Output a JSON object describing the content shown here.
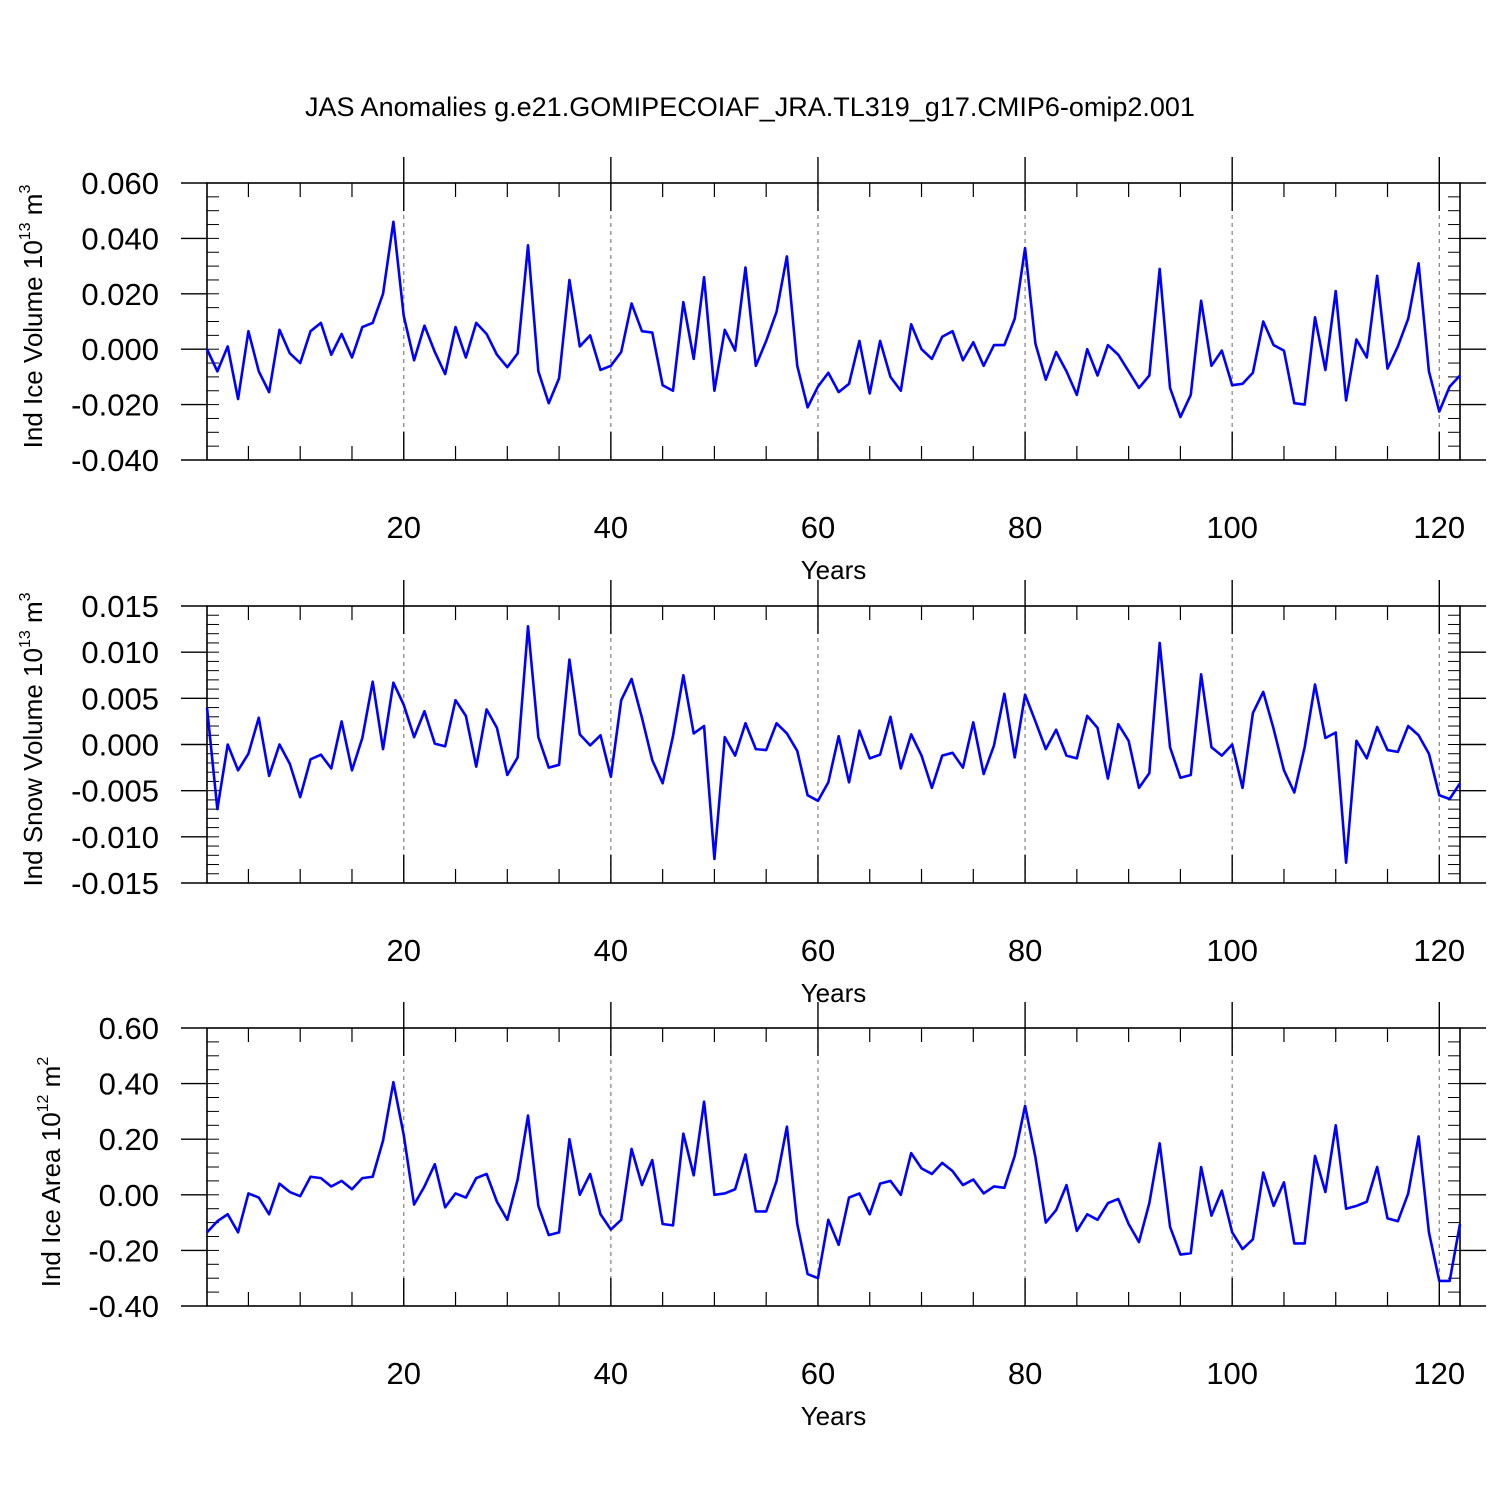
{
  "title": "JAS Anomalies g.e21.GOMIPECOIAF_JRA.TL319_g17.CMIP6-omip2.001",
  "colors": {
    "line": "#0000ff",
    "axis": "#000000",
    "grid": "#808080"
  },
  "chart_data": [
    {
      "type": "line",
      "xlabel": "Years",
      "ylabel": {
        "base": "Ind Ice Volume 10",
        "exp": "13",
        "unit": " m",
        "unit_exp": "3"
      },
      "xlim": [
        1,
        122
      ],
      "ylim": [
        -0.04,
        0.06
      ],
      "xticks": [
        20,
        40,
        60,
        80,
        100,
        120
      ],
      "xtick_labels": [
        "20",
        "40",
        "60",
        "80",
        "100",
        "120"
      ],
      "yticks": [
        -0.04,
        -0.02,
        0.0,
        0.02,
        0.04,
        0.06
      ],
      "ytick_labels": [
        "-0.040",
        "-0.020",
        "0.000",
        "0.020",
        "0.040",
        "0.060"
      ],
      "yminor_step": 0.005,
      "values": [
        0.0,
        -0.008,
        0.001,
        -0.018,
        0.0065,
        -0.008,
        -0.0155,
        0.007,
        -0.0015,
        -0.005,
        0.0065,
        0.0095,
        -0.002,
        0.0055,
        -0.003,
        0.008,
        0.0095,
        0.02,
        0.046,
        0.012,
        -0.004,
        0.0085,
        -0.001,
        -0.009,
        0.008,
        -0.003,
        0.0095,
        0.0055,
        -0.002,
        -0.0065,
        -0.0015,
        0.0375,
        -0.008,
        -0.0195,
        -0.0105,
        0.025,
        0.001,
        0.005,
        -0.0075,
        -0.006,
        -0.001,
        0.0165,
        0.0065,
        0.006,
        -0.013,
        -0.015,
        0.017,
        -0.0035,
        0.026,
        -0.015,
        0.007,
        -0.0005,
        0.0295,
        -0.006,
        0.003,
        0.0135,
        0.0335,
        -0.006,
        -0.021,
        -0.0135,
        -0.0085,
        -0.0155,
        -0.0125,
        0.003,
        -0.016,
        0.003,
        -0.01,
        -0.015,
        0.009,
        0.0,
        -0.0035,
        0.0045,
        0.0065,
        -0.004,
        0.0025,
        -0.006,
        0.0015,
        0.0015,
        0.011,
        0.0365,
        0.002,
        -0.011,
        -0.001,
        -0.008,
        -0.0165,
        0.0,
        -0.0095,
        0.0015,
        -0.002,
        -0.008,
        -0.014,
        -0.0095,
        0.029,
        -0.014,
        -0.0245,
        -0.0165,
        0.0175,
        -0.006,
        -0.0005,
        -0.013,
        -0.0125,
        -0.0085,
        0.01,
        0.0015,
        -0.0005,
        -0.0195,
        -0.02,
        0.0115,
        -0.0075,
        0.021,
        -0.0185,
        0.0035,
        -0.003,
        0.0265,
        -0.007,
        0.001,
        0.011,
        0.031,
        -0.008,
        -0.0225,
        -0.0135,
        -0.0095
      ]
    },
    {
      "type": "line",
      "xlabel": "Years",
      "ylabel": {
        "base": "Ind Snow Volume 10",
        "exp": "13",
        "unit": " m",
        "unit_exp": "3"
      },
      "xlim": [
        1,
        122
      ],
      "ylim": [
        -0.015,
        0.015
      ],
      "xticks": [
        20,
        40,
        60,
        80,
        100,
        120
      ],
      "xtick_labels": [
        "20",
        "40",
        "60",
        "80",
        "100",
        "120"
      ],
      "yticks": [
        -0.015,
        -0.01,
        -0.005,
        0.0,
        0.005,
        0.01,
        0.015
      ],
      "ytick_labels": [
        "-0.015",
        "-0.010",
        "-0.005",
        "0.000",
        "0.005",
        "0.010",
        "0.015"
      ],
      "yminor_step": 0.001,
      "values": [
        0.004,
        -0.007,
        0.0,
        -0.0028,
        -0.001,
        0.0029,
        -0.0034,
        0.0,
        -0.0021,
        -0.0057,
        -0.0016,
        -0.0011,
        -0.0026,
        0.0025,
        -0.0028,
        0.0007,
        0.0068,
        -0.0005,
        0.0067,
        0.0043,
        0.0008,
        0.0036,
        0.0001,
        -0.0002,
        0.0048,
        0.0031,
        -0.0024,
        0.0038,
        0.0018,
        -0.0033,
        -0.0014,
        0.0128,
        0.0008,
        -0.0025,
        -0.0022,
        0.0092,
        0.0011,
        -0.0001,
        0.001,
        -0.0035,
        0.0048,
        0.0071,
        0.0029,
        -0.0017,
        -0.0042,
        0.0009,
        0.0075,
        0.0012,
        0.002,
        -0.0124,
        0.0008,
        -0.0012,
        0.0023,
        -0.0005,
        -0.0006,
        0.0023,
        0.0012,
        -0.0007,
        -0.0055,
        -0.0061,
        -0.0041,
        0.0009,
        -0.0041,
        0.0015,
        -0.0015,
        -0.0011,
        0.003,
        -0.0026,
        0.0011,
        -0.0012,
        -0.0047,
        -0.0012,
        -0.0009,
        -0.0025,
        0.0024,
        -0.0032,
        -0.0001,
        0.0055,
        -0.0014,
        0.0054,
        0.0025,
        -0.0005,
        0.0016,
        -0.0012,
        -0.0015,
        0.0031,
        0.0018,
        -0.0037,
        0.0022,
        0.0004,
        -0.0047,
        -0.0031,
        0.011,
        -0.0003,
        -0.0036,
        -0.0033,
        0.0076,
        -0.0003,
        -0.0012,
        0.0,
        -0.0047,
        0.0034,
        0.0057,
        0.0017,
        -0.0028,
        -0.0052,
        -0.0003,
        0.0065,
        0.0007,
        0.0013,
        -0.0128,
        0.0004,
        -0.0015,
        0.0019,
        -0.0006,
        -0.0008,
        0.002,
        0.001,
        -0.001,
        -0.0055,
        -0.0059,
        -0.0042
      ]
    },
    {
      "type": "line",
      "xlabel": "Years",
      "ylabel": {
        "base": "Ind Ice Area 10",
        "exp": "12",
        "unit": " m",
        "unit_exp": "2"
      },
      "xlim": [
        1,
        122
      ],
      "ylim": [
        -0.4,
        0.6
      ],
      "xticks": [
        20,
        40,
        60,
        80,
        100,
        120
      ],
      "xtick_labels": [
        "20",
        "40",
        "60",
        "80",
        "100",
        "120"
      ],
      "yticks": [
        -0.4,
        -0.2,
        0.0,
        0.2,
        0.4,
        0.6
      ],
      "ytick_labels": [
        "-0.40",
        "-0.20",
        "0.00",
        "0.20",
        "0.40",
        "0.60"
      ],
      "yminor_step": 0.05,
      "values": [
        -0.135,
        -0.095,
        -0.07,
        -0.135,
        0.005,
        -0.01,
        -0.07,
        0.04,
        0.01,
        -0.005,
        0.065,
        0.06,
        0.03,
        0.05,
        0.02,
        0.06,
        0.065,
        0.195,
        0.405,
        0.215,
        -0.035,
        0.03,
        0.11,
        -0.045,
        0.005,
        -0.01,
        0.06,
        0.075,
        -0.025,
        -0.09,
        0.055,
        0.285,
        -0.04,
        -0.145,
        -0.135,
        0.2,
        0.0,
        0.075,
        -0.07,
        -0.125,
        -0.09,
        0.165,
        0.035,
        0.125,
        -0.105,
        -0.11,
        0.22,
        0.07,
        0.335,
        0.0,
        0.005,
        0.02,
        0.145,
        -0.06,
        -0.06,
        0.05,
        0.245,
        -0.105,
        -0.285,
        -0.3,
        -0.09,
        -0.18,
        -0.01,
        0.005,
        -0.07,
        0.04,
        0.05,
        0.0,
        0.15,
        0.095,
        0.075,
        0.115,
        0.085,
        0.035,
        0.055,
        0.005,
        0.03,
        0.025,
        0.14,
        0.32,
        0.135,
        -0.1,
        -0.055,
        0.035,
        -0.13,
        -0.07,
        -0.09,
        -0.03,
        -0.015,
        -0.105,
        -0.17,
        -0.03,
        0.185,
        -0.115,
        -0.215,
        -0.21,
        0.1,
        -0.075,
        0.015,
        -0.135,
        -0.195,
        -0.16,
        0.08,
        -0.04,
        0.045,
        -0.175,
        -0.175,
        0.14,
        0.01,
        0.25,
        -0.05,
        -0.04,
        -0.025,
        0.1,
        -0.085,
        -0.095,
        0.005,
        0.21,
        -0.135,
        -0.31,
        -0.31,
        -0.105
      ]
    }
  ]
}
